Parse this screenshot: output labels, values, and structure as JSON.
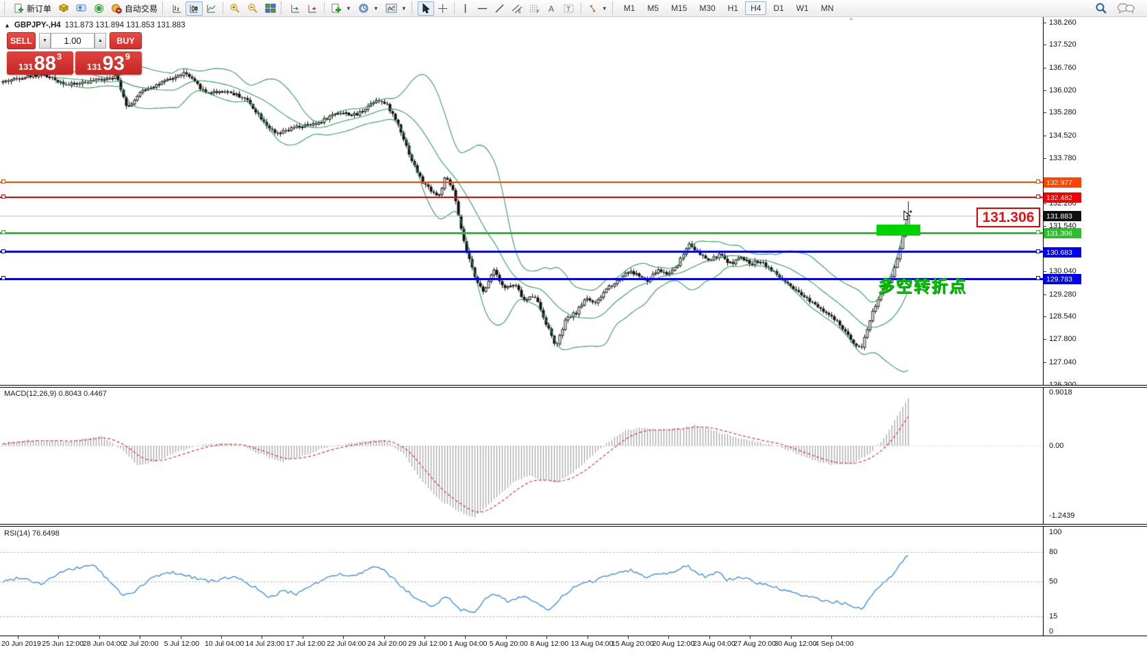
{
  "toolbar": {
    "new_order_label": "新订单",
    "auto_trading_label": "自动交易",
    "timeframes": [
      "M1",
      "M5",
      "M15",
      "M30",
      "H1",
      "H4",
      "D1",
      "W1",
      "MN"
    ],
    "active_timeframe": "H4"
  },
  "header": {
    "collapse": "▲",
    "symbol": "GBPJPY-,H4",
    "ohlc": "131.873 131.894 131.853 131.883"
  },
  "trade_panel": {
    "sell_label": "SELL",
    "buy_label": "BUY",
    "volume": "1.00",
    "sell_small": "131",
    "sell_big": "88",
    "sell_sup": "3",
    "buy_small": "131",
    "buy_big": "93",
    "buy_sup": "9"
  },
  "price_scale": {
    "ticks": [
      "138.260",
      "137.520",
      "136.760",
      "136.020",
      "135.280",
      "134.520",
      "133.780",
      "132.280",
      "131.540",
      "130.040",
      "129.280",
      "128.540",
      "127.800",
      "127.040",
      "126.300"
    ]
  },
  "current_price": {
    "label": "131.883",
    "value": 131.883
  },
  "levels": [
    {
      "label": "132.977",
      "value": 132.977,
      "color": "#ff4500",
      "thickness": 2
    },
    {
      "label": "132.482",
      "value": 132.482,
      "color": "#f40000",
      "thickness": 2
    },
    {
      "label": "131.306",
      "value": 131.306,
      "color": "#2dbe2d",
      "thickness": 3
    },
    {
      "label": "130.683",
      "value": 130.683,
      "color": "#0000f0",
      "thickness": 3
    },
    {
      "label": "129.783",
      "value": 129.783,
      "color": "#0000f0",
      "thickness": 3
    }
  ],
  "annotations": {
    "price_label": "131.306",
    "turning_point": "多空转折点",
    "shift_marker": "⌃"
  },
  "macd": {
    "title": "MACD(12,26,9) 0.8043 0.4467",
    "scale_max": "0.9018",
    "scale_zero": "0.00",
    "scale_min": "-1.2439"
  },
  "rsi": {
    "title": "RSI(14) 76.6498",
    "scale": [
      "100",
      "80",
      "50",
      "15",
      "0"
    ],
    "levels": [
      80,
      50,
      15
    ]
  },
  "time_axis": {
    "labels": [
      "20 Jun 2019",
      "25 Jun 12:00",
      "28 Jun 04:00",
      "2 Jul 20:00",
      "5 Jul 12:00",
      "10 Jul 04:00",
      "14 Jul 23:00",
      "17 Jul 12:00",
      "22 Jul 04:00",
      "24 Jul 20:00",
      "29 Jul 12:00",
      "1 Aug 04:00",
      "5 Aug 20:00",
      "8 Aug 12:00",
      "13 Aug 04:00",
      "15 Aug 20:00",
      "20 Aug 12:00",
      "23 Aug 04:00",
      "27 Aug 20:00",
      "30 Aug 12:00",
      "4 Sep 04:00"
    ]
  },
  "chart_data": {
    "type": "candlestick",
    "symbol": "GBPJPY-",
    "timeframe": "H4",
    "price_range": [
      126.3,
      138.26
    ],
    "bars": 331,
    "last_close": 131.883,
    "last_high": 132.36,
    "bollinger": {
      "period": 20,
      "deviation": 2,
      "color": "#2e9b57"
    },
    "candle_colors": {
      "up_fill": "#ffffff",
      "down_fill": "#111111",
      "outline": "#111111"
    },
    "price_path": [
      [
        4,
        136.3
      ],
      [
        30,
        136.45
      ],
      [
        60,
        136.55
      ],
      [
        100,
        136.2
      ],
      [
        140,
        136.35
      ],
      [
        170,
        136.5
      ],
      [
        186,
        135.45
      ],
      [
        210,
        136.05
      ],
      [
        240,
        136.3
      ],
      [
        270,
        136.6
      ],
      [
        300,
        135.95
      ],
      [
        330,
        136.0
      ],
      [
        358,
        135.75
      ],
      [
        390,
        134.85
      ],
      [
        402,
        134.55
      ],
      [
        430,
        134.8
      ],
      [
        460,
        134.9
      ],
      [
        492,
        135.3
      ],
      [
        520,
        135.2
      ],
      [
        550,
        135.75
      ],
      [
        566,
        135.5
      ],
      [
        582,
        134.85
      ],
      [
        600,
        133.75
      ],
      [
        616,
        133.0
      ],
      [
        640,
        132.5
      ],
      [
        650,
        133.15
      ],
      [
        662,
        132.7
      ],
      [
        672,
        131.5
      ],
      [
        682,
        130.6
      ],
      [
        692,
        129.95
      ],
      [
        706,
        129.3
      ],
      [
        720,
        130.15
      ],
      [
        736,
        129.5
      ],
      [
        752,
        129.6
      ],
      [
        766,
        129.05
      ],
      [
        780,
        129.3
      ],
      [
        796,
        128.4
      ],
      [
        812,
        127.55
      ],
      [
        826,
        128.45
      ],
      [
        842,
        128.7
      ],
      [
        856,
        129.2
      ],
      [
        870,
        128.95
      ],
      [
        886,
        129.5
      ],
      [
        900,
        129.7
      ],
      [
        916,
        130.05
      ],
      [
        930,
        129.95
      ],
      [
        946,
        129.7
      ],
      [
        960,
        130.1
      ],
      [
        976,
        129.95
      ],
      [
        990,
        130.3
      ],
      [
        1006,
        131.0
      ],
      [
        1020,
        130.6
      ],
      [
        1036,
        130.4
      ],
      [
        1050,
        130.6
      ],
      [
        1066,
        130.3
      ],
      [
        1080,
        130.5
      ],
      [
        1096,
        130.3
      ],
      [
        1110,
        130.4
      ],
      [
        1130,
        130.0
      ],
      [
        1160,
        129.4
      ],
      [
        1195,
        128.9
      ],
      [
        1225,
        128.3
      ],
      [
        1245,
        127.7
      ],
      [
        1258,
        127.55
      ],
      [
        1272,
        128.6
      ],
      [
        1285,
        129.3
      ],
      [
        1297,
        129.6
      ],
      [
        1308,
        130.3
      ],
      [
        1316,
        131.0
      ],
      [
        1322,
        131.6
      ],
      [
        1326,
        131.88
      ]
    ],
    "macd": {
      "range": [
        -1.2439,
        0.9018
      ],
      "histogram_color": "#a4a4a4",
      "signal_color": "#e03030",
      "path": [
        [
          4,
          0.05
        ],
        [
          40,
          0.1
        ],
        [
          100,
          0.08
        ],
        [
          150,
          0.16
        ],
        [
          180,
          -0.08
        ],
        [
          200,
          -0.33
        ],
        [
          230,
          -0.25
        ],
        [
          260,
          -0.1
        ],
        [
          290,
          0.0
        ],
        [
          320,
          0.05
        ],
        [
          352,
          0.0
        ],
        [
          382,
          -0.15
        ],
        [
          410,
          -0.28
        ],
        [
          440,
          -0.18
        ],
        [
          470,
          -0.05
        ],
        [
          500,
          0.02
        ],
        [
          530,
          0.08
        ],
        [
          560,
          0.12
        ],
        [
          590,
          -0.15
        ],
        [
          612,
          -0.55
        ],
        [
          640,
          -0.9
        ],
        [
          668,
          -1.1
        ],
        [
          692,
          -1.22
        ],
        [
          712,
          -1.0
        ],
        [
          732,
          -0.8
        ],
        [
          752,
          -0.6
        ],
        [
          772,
          -0.5
        ],
        [
          792,
          -0.58
        ],
        [
          812,
          -0.62
        ],
        [
          832,
          -0.5
        ],
        [
          852,
          -0.3
        ],
        [
          872,
          -0.1
        ],
        [
          892,
          0.1
        ],
        [
          912,
          0.25
        ],
        [
          932,
          0.31
        ],
        [
          952,
          0.28
        ],
        [
          972,
          0.26
        ],
        [
          992,
          0.3
        ],
        [
          1012,
          0.35
        ],
        [
          1032,
          0.3
        ],
        [
          1052,
          0.22
        ],
        [
          1072,
          0.15
        ],
        [
          1092,
          0.1
        ],
        [
          1112,
          0.05
        ],
        [
          1135,
          0.0
        ],
        [
          1160,
          -0.12
        ],
        [
          1190,
          -0.25
        ],
        [
          1220,
          -0.33
        ],
        [
          1248,
          -0.28
        ],
        [
          1270,
          -0.12
        ],
        [
          1288,
          0.1
        ],
        [
          1300,
          0.3
        ],
        [
          1310,
          0.5
        ],
        [
          1318,
          0.65
        ],
        [
          1326,
          0.8043
        ]
      ]
    },
    "rsi": {
      "range": [
        0,
        100
      ],
      "color": "#3e8ede",
      "path": [
        [
          4,
          50
        ],
        [
          30,
          55
        ],
        [
          60,
          48
        ],
        [
          90,
          60
        ],
        [
          120,
          65
        ],
        [
          136,
          68
        ],
        [
          152,
          56
        ],
        [
          180,
          36
        ],
        [
          200,
          42
        ],
        [
          224,
          55
        ],
        [
          252,
          60
        ],
        [
          280,
          55
        ],
        [
          312,
          50
        ],
        [
          340,
          56
        ],
        [
          372,
          45
        ],
        [
          392,
          33
        ],
        [
          412,
          41
        ],
        [
          432,
          38
        ],
        [
          452,
          46
        ],
        [
          472,
          52
        ],
        [
          492,
          58
        ],
        [
          512,
          55
        ],
        [
          532,
          60
        ],
        [
          552,
          66
        ],
        [
          572,
          55
        ],
        [
          592,
          42
        ],
        [
          612,
          30
        ],
        [
          632,
          26
        ],
        [
          652,
          36
        ],
        [
          663,
          28
        ],
        [
          673,
          22
        ],
        [
          692,
          20
        ],
        [
          708,
          32
        ],
        [
          722,
          38
        ],
        [
          742,
          30
        ],
        [
          762,
          36
        ],
        [
          782,
          30
        ],
        [
          802,
          20
        ],
        [
          822,
          36
        ],
        [
          842,
          46
        ],
        [
          862,
          50
        ],
        [
          882,
          55
        ],
        [
          902,
          60
        ],
        [
          922,
          62
        ],
        [
          942,
          55
        ],
        [
          962,
          58
        ],
        [
          982,
          60
        ],
        [
          1002,
          67
        ],
        [
          1016,
          60
        ],
        [
          1032,
          55
        ],
        [
          1048,
          60
        ],
        [
          1062,
          52
        ],
        [
          1082,
          55
        ],
        [
          1102,
          50
        ],
        [
          1130,
          45
        ],
        [
          1160,
          38
        ],
        [
          1200,
          32
        ],
        [
          1235,
          28
        ],
        [
          1258,
          22
        ],
        [
          1275,
          38
        ],
        [
          1290,
          48
        ],
        [
          1305,
          58
        ],
        [
          1315,
          68
        ],
        [
          1326,
          76.65
        ]
      ]
    }
  }
}
